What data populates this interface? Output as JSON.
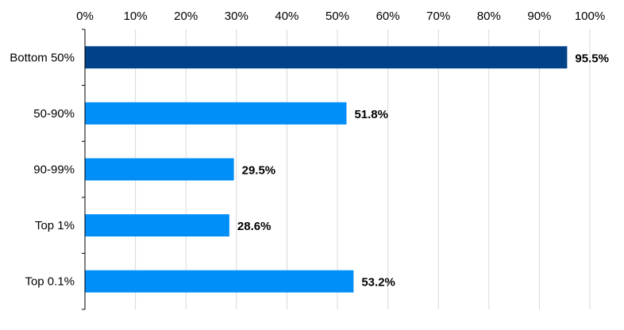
{
  "chart_data": {
    "type": "bar",
    "orientation": "horizontal",
    "title": "",
    "xlabel": "",
    "ylabel": "",
    "categories": [
      "Bottom 50%",
      "50-90%",
      "90-99%",
      "Top 1%",
      "Top 0.1%"
    ],
    "values": [
      95.5,
      51.8,
      29.5,
      28.6,
      53.2
    ],
    "data_labels": [
      "95.5%",
      "51.8%",
      "29.5%",
      "28.6%",
      "53.2%"
    ],
    "xlim": [
      0,
      100
    ],
    "x_ticks": [
      0,
      10,
      20,
      30,
      40,
      50,
      60,
      70,
      80,
      90,
      100
    ],
    "x_tick_labels": [
      "0%",
      "10%",
      "20%",
      "30%",
      "40%",
      "50%",
      "60%",
      "70%",
      "80%",
      "90%",
      "100%"
    ],
    "x_axis_position": "top",
    "grid": true,
    "legend": "none",
    "colors": {
      "highlight": "#00428a",
      "default": "#008ef8",
      "grid": "#d9d9d9"
    },
    "highlight_index": 0
  }
}
